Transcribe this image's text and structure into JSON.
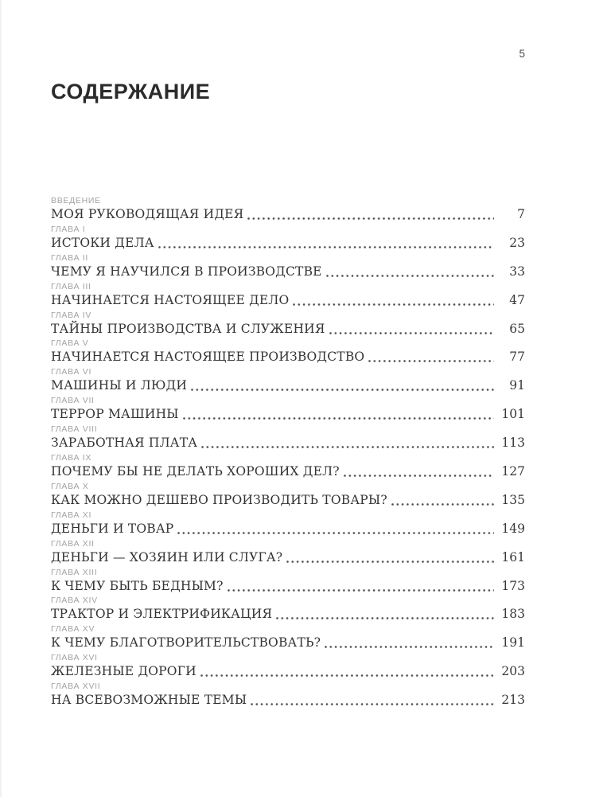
{
  "page": {
    "folio": "5",
    "heading": "СОДЕРЖАНИЕ"
  },
  "toc": {
    "entries": [
      {
        "label": "ВВЕДЕНИЕ",
        "title": "МОЯ РУКОВОДЯЩАЯ ИДЕЯ",
        "page": "7"
      },
      {
        "label": "ГЛАВА I",
        "title": "ИСТОКИ ДЕЛА",
        "page": "23"
      },
      {
        "label": "ГЛАВА II",
        "title": "ЧЕМУ Я НАУЧИЛСЯ В ПРОИЗВОДСТВЕ",
        "page": "33"
      },
      {
        "label": "ГЛАВА III",
        "title": "НАЧИНАЕТСЯ НАСТОЯЩЕЕ ДЕЛО",
        "page": "47"
      },
      {
        "label": "ГЛАВА IV",
        "title": "ТАЙНЫ ПРОИЗВОДСТВА И СЛУЖЕНИЯ",
        "page": "65"
      },
      {
        "label": "ГЛАВА V",
        "title": "НАЧИНАЕТСЯ НАСТОЯЩЕЕ ПРОИЗВОДСТВО",
        "page": "77"
      },
      {
        "label": "ГЛАВА VI",
        "title": "МАШИНЫ И ЛЮДИ",
        "page": "91"
      },
      {
        "label": "ГЛАВА VII",
        "title": "ТЕРРОР МАШИНЫ",
        "page": "101"
      },
      {
        "label": "ГЛАВА VIII",
        "title": "ЗАРАБОТНАЯ ПЛАТА",
        "page": "113"
      },
      {
        "label": "ГЛАВА IX",
        "title": "ПОЧЕМУ БЫ НЕ ДЕЛАТЬ ХОРОШИХ ДЕЛ?",
        "page": "127"
      },
      {
        "label": "ГЛАВА X",
        "title": "КАК МОЖНО ДЕШЕВО ПРОИЗВОДИТЬ ТОВАРЫ?",
        "page": "135"
      },
      {
        "label": "ГЛАВА XI",
        "title": "ДЕНЬГИ И ТОВАР",
        "page": "149"
      },
      {
        "label": "ГЛАВА XII",
        "title": "ДЕНЬГИ — ХОЗЯИН ИЛИ СЛУГА?",
        "page": "161"
      },
      {
        "label": "ГЛАВА XIII",
        "title": "К ЧЕМУ БЫТЬ БЕДНЫМ?",
        "page": "173"
      },
      {
        "label": "ГЛАВА XIV",
        "title": "ТРАКТОР И ЭЛЕКТРИФИКАЦИЯ",
        "page": "183"
      },
      {
        "label": "ГЛАВА XV",
        "title": "К ЧЕМУ БЛАГОТВОРИТЕЛЬСТВОВАТЬ?",
        "page": "191"
      },
      {
        "label": "ГЛАВА XVI",
        "title": "ЖЕЛЕЗНЫЕ ДОРОГИ",
        "page": "203"
      },
      {
        "label": "ГЛАВА XVII",
        "title": "НА ВСЕВОЗМОЖНЫЕ ТЕМЫ",
        "page": "213"
      }
    ]
  }
}
